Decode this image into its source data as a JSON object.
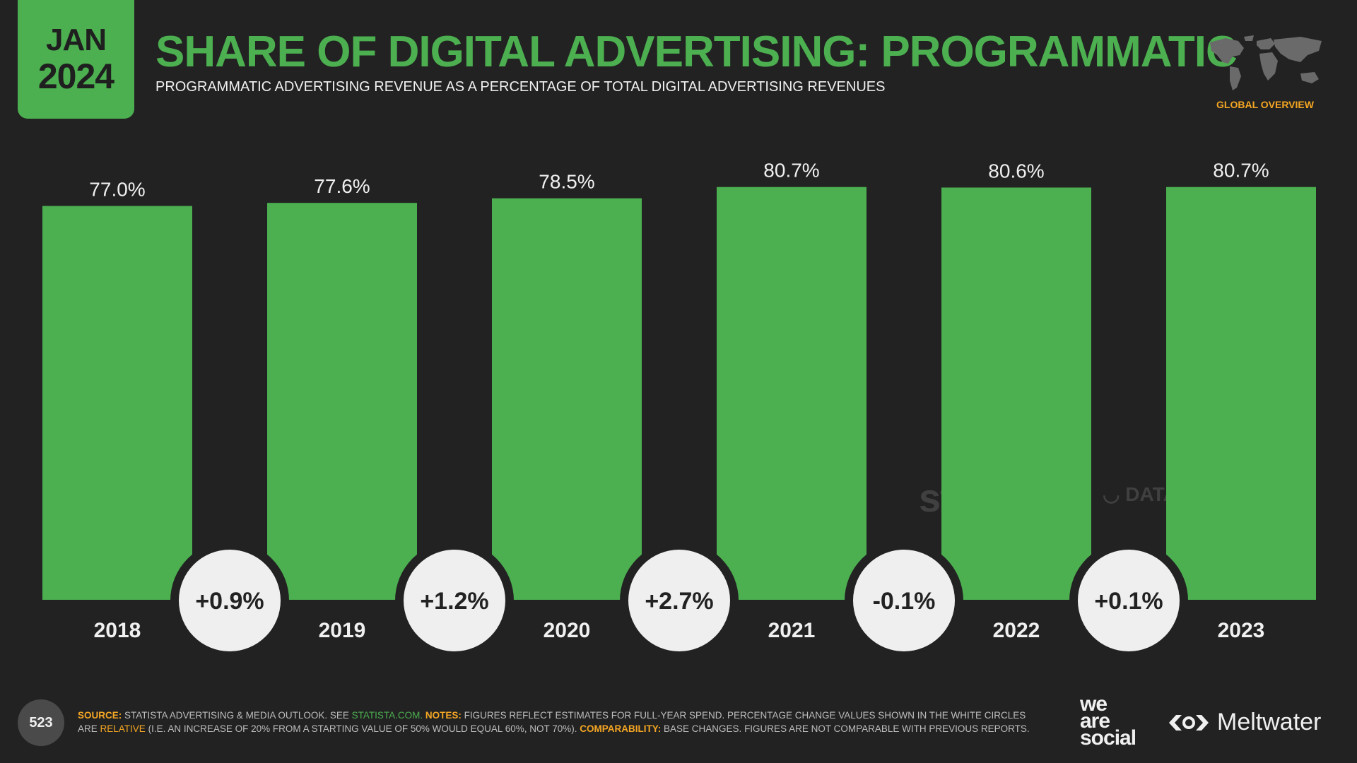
{
  "header": {
    "date_month": "JAN",
    "date_year": "2024",
    "title": "SHARE OF DIGITAL ADVERTISING: PROGRAMMATIC",
    "subtitle": "PROGRAMMATIC ADVERTISING REVENUE AS A PERCENTAGE OF TOTAL DIGITAL ADVERTISING REVENUES",
    "region_label": "GLOBAL OVERVIEW"
  },
  "chart_data": {
    "type": "bar",
    "title": "SHARE OF DIGITAL ADVERTISING: PROGRAMMATIC",
    "subtitle": "PROGRAMMATIC ADVERTISING REVENUE AS A PERCENTAGE OF TOTAL DIGITAL ADVERTISING REVENUES",
    "categories": [
      "2018",
      "2019",
      "2020",
      "2021",
      "2022",
      "2023"
    ],
    "values": [
      77.0,
      77.6,
      78.5,
      80.7,
      80.6,
      80.7
    ],
    "value_labels": [
      "77.0%",
      "77.6%",
      "78.5%",
      "80.7%",
      "80.6%",
      "80.7%"
    ],
    "changes": [
      "+0.9%",
      "+1.2%",
      "+2.7%",
      "-0.1%",
      "+0.1%"
    ],
    "ylim": [
      0,
      100
    ],
    "grid": false,
    "bar_color": "#4caf50"
  },
  "watermarks": {
    "statista": "statista",
    "datareportal": "DATAREPORTAL"
  },
  "footer": {
    "page_number": "523",
    "source_key": "SOURCE:",
    "source_text": "STATISTA ADVERTISING & MEDIA OUTLOOK. SEE",
    "source_link": "STATISTA.COM.",
    "notes_key": "NOTES:",
    "notes_text": "FIGURES REFLECT ESTIMATES FOR FULL-YEAR SPEND. PERCENTAGE CHANGE VALUES SHOWN IN THE WHITE CIRCLES ARE",
    "relative_word": "RELATIVE",
    "relative_text": "(I.E. AN INCREASE OF 20% FROM A STARTING VALUE OF 50% WOULD EQUAL 60%, NOT 70%).",
    "comparability_key": "COMPARABILITY:",
    "comparability_text": "BASE CHANGES. FIGURES ARE NOT COMPARABLE WITH PREVIOUS REPORTS."
  },
  "brands": {
    "we": "we",
    "are": "are",
    "social": "social",
    "meltwater": "Meltwater"
  },
  "colors": {
    "background": "#222222",
    "accent_green": "#4caf50",
    "accent_orange": "#f5a623",
    "circle_fill": "#efefef",
    "text": "#f0f0f0"
  }
}
